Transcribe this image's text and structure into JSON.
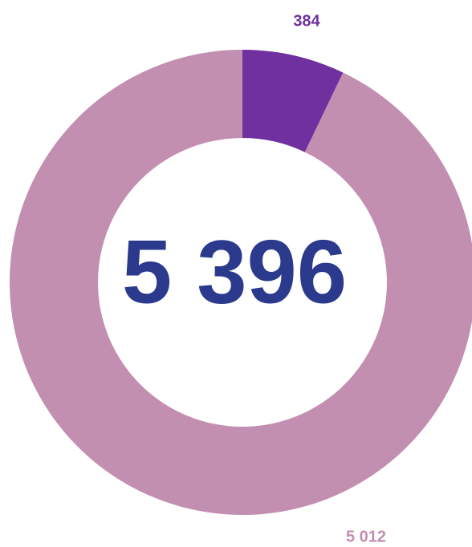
{
  "chart_data": {
    "type": "donut",
    "center_label": "5 396",
    "categories": [
      null,
      null
    ],
    "values": [
      384,
      5012
    ],
    "value_labels": [
      "384",
      "5 012"
    ],
    "colors": [
      "#7030a0",
      "#c38fb0"
    ],
    "center_color": "#2b3a8c"
  }
}
